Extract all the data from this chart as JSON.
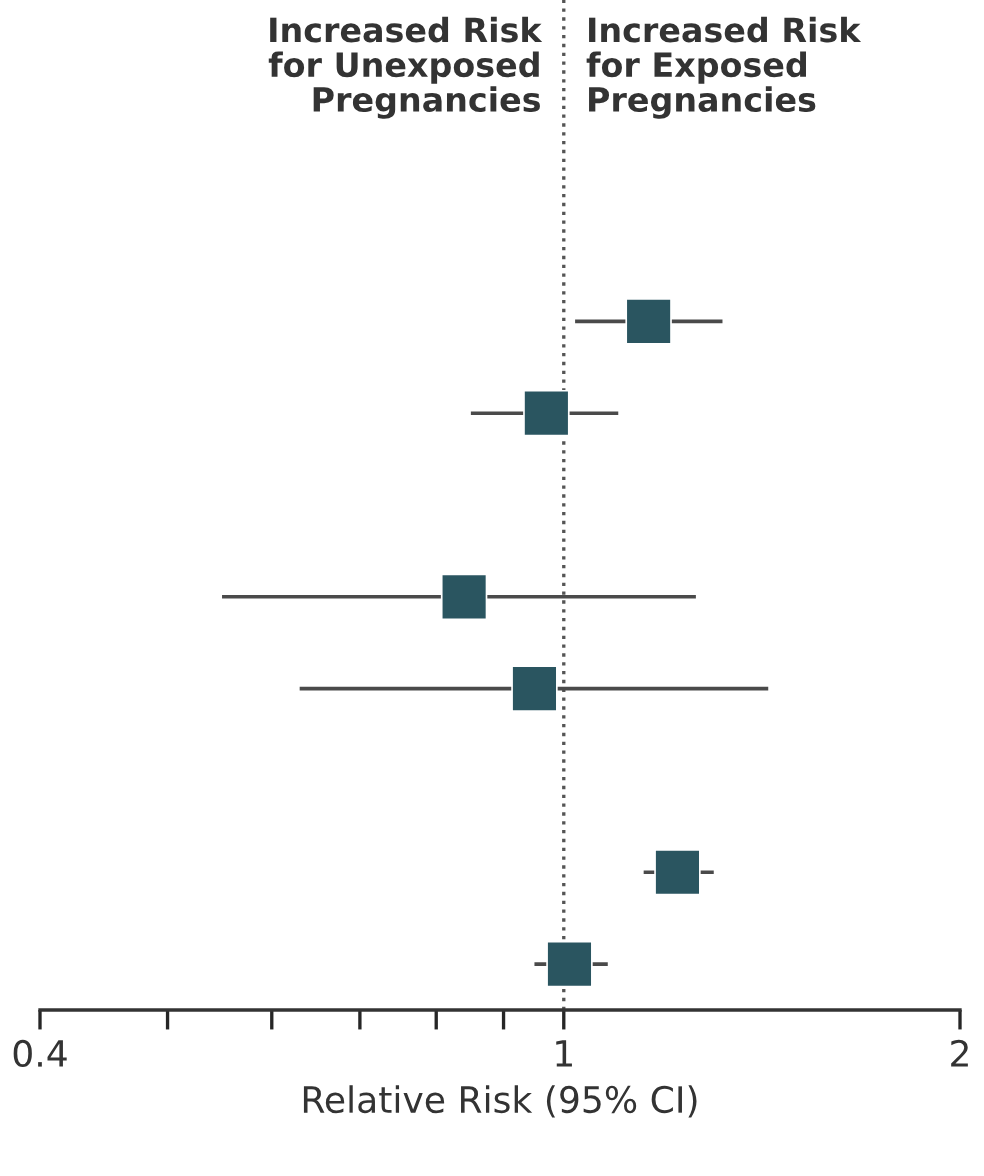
{
  "chart_data": {
    "type": "scatter",
    "orientation": "horizontal",
    "xlabel": "Relative Risk (95% CI)",
    "annotations": [
      "Increased Risk\nfor Unexposed\nPregnancies",
      "Increased Risk\nfor Exposed\nPregnancies"
    ],
    "categories": [
      null,
      null,
      null,
      null,
      null,
      null,
      null,
      null,
      null,
      null,
      null
    ],
    "values": [
      null,
      null,
      null,
      1.16,
      0.97,
      null,
      0.84,
      0.95,
      null,
      1.22,
      1.01
    ],
    "errors": [
      null,
      null,
      null,
      [
        1.02,
        1.32
      ],
      [
        0.85,
        1.1
      ],
      null,
      [
        0.55,
        1.26
      ],
      [
        0.63,
        1.43
      ],
      null,
      [
        1.15,
        1.3
      ],
      [
        0.95,
        1.08
      ]
    ],
    "color": "#2a5560",
    "marker": "square",
    "log": "x",
    "xlim": [
      0.4,
      2
    ],
    "xticks": [
      0.4,
      {
        "value": 0.5,
        "label": null
      },
      {
        "value": 0.6,
        "label": null
      },
      {
        "value": 0.7,
        "label": null
      },
      {
        "value": 0.8,
        "label": null
      },
      {
        "value": 0.9,
        "label": null
      },
      1,
      2
    ],
    "tick_labels": "x",
    "ref_lines": [
      {
        "axis": "x",
        "value": 1,
        "line_style": "dotted",
        "color": "#555555"
      }
    ],
    "grid": false,
    "legend": false
  }
}
